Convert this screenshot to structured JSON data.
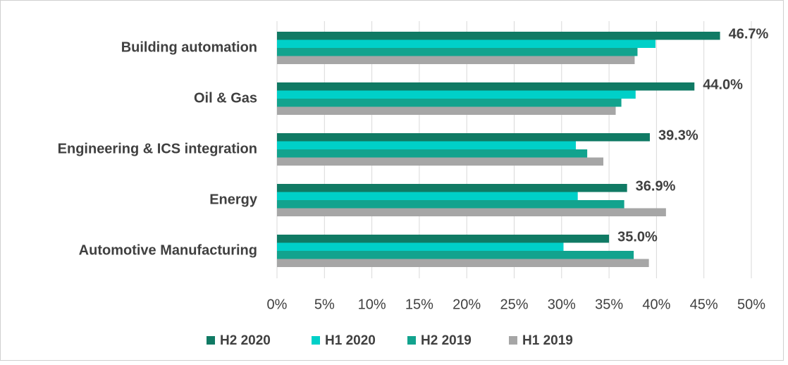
{
  "chart_data": {
    "type": "barh",
    "categories": [
      "Building automation",
      "Oil & Gas",
      "Engineering & ICS integration",
      "Energy",
      "Automotive Manufacturing"
    ],
    "series": [
      {
        "name": "H2 2020",
        "color": "#107a64",
        "values": [
          46.7,
          44.0,
          39.3,
          36.9,
          35.0
        ],
        "value_labels": [
          "46.7%",
          "44.0%",
          "39.3%",
          "36.9%",
          "35.0%"
        ]
      },
      {
        "name": "H1 2020",
        "color": "#00d0c8",
        "values": [
          39.9,
          37.8,
          31.5,
          31.7,
          30.2
        ]
      },
      {
        "name": "H2 2019",
        "color": "#12a38e",
        "values": [
          38.0,
          36.3,
          32.7,
          36.6,
          37.6
        ]
      },
      {
        "name": "H1 2019",
        "color": "#a6a6a6",
        "values": [
          37.7,
          35.7,
          34.4,
          41.0,
          39.2
        ]
      }
    ],
    "xlim": [
      0,
      50
    ],
    "xticks": [
      {
        "value": 0,
        "label": "0%"
      },
      {
        "value": 5,
        "label": "5%"
      },
      {
        "value": 10,
        "label": "10%"
      },
      {
        "value": 15,
        "label": "15%"
      },
      {
        "value": 20,
        "label": "20%"
      },
      {
        "value": 25,
        "label": "25%"
      },
      {
        "value": 30,
        "label": "30%"
      },
      {
        "value": 35,
        "label": "35%"
      },
      {
        "value": 40,
        "label": "40%"
      },
      {
        "value": 45,
        "label": "45%"
      },
      {
        "value": 50,
        "label": "50%"
      }
    ],
    "grid": true,
    "legend": "bottom"
  }
}
